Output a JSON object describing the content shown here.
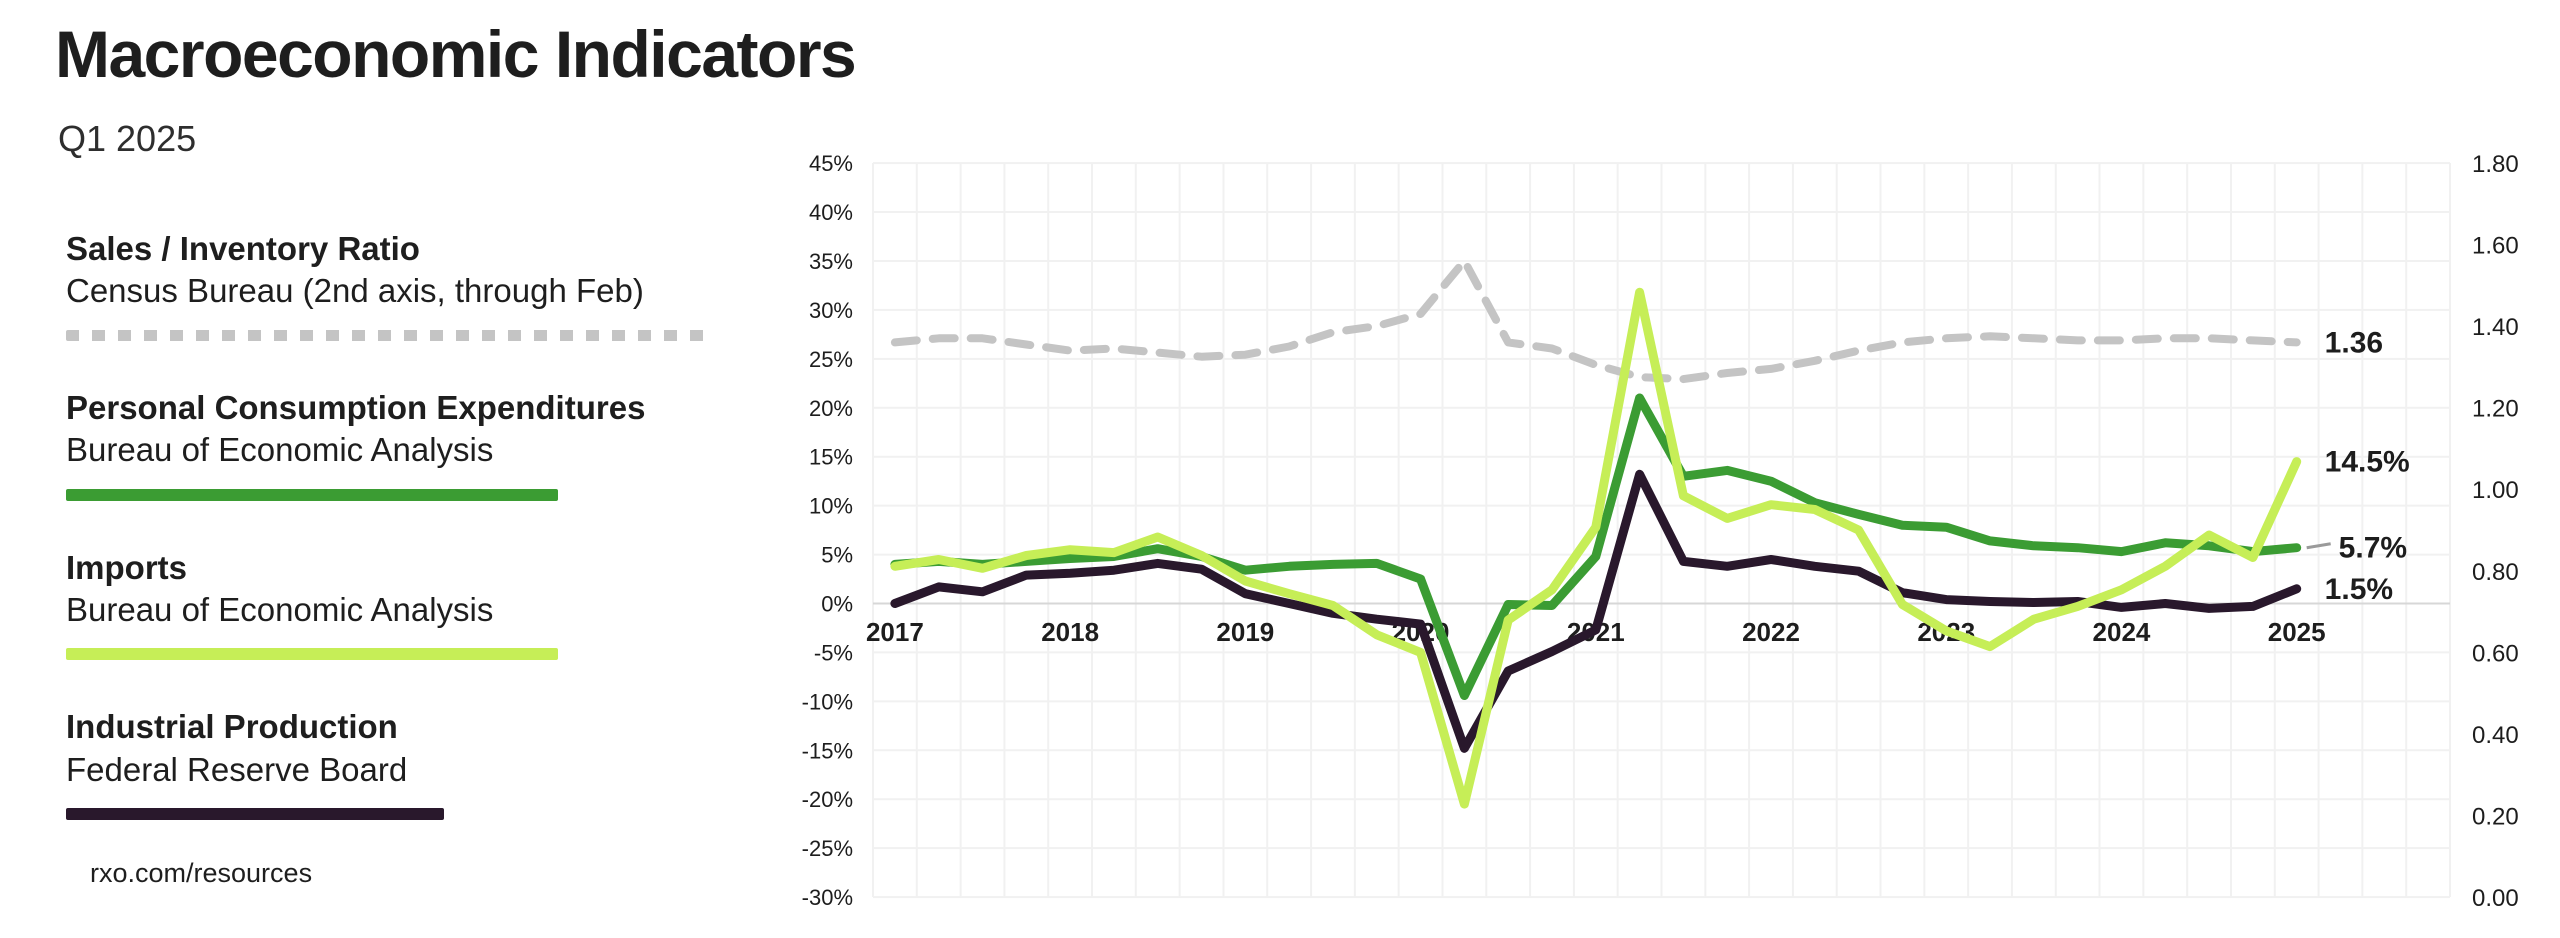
{
  "header": {
    "title": "Macroeconomic Indicators",
    "subtitle": "Q1 2025"
  },
  "legend": [
    {
      "name": "Sales / Inventory Ratio",
      "source": "Census Bureau (2nd axis, through Feb)",
      "color": "#c4c4c4",
      "style": "dashed"
    },
    {
      "name": "Personal Consumption Expenditures",
      "source": "Bureau of Economic Analysis",
      "color": "#3b9c33",
      "style": "solid"
    },
    {
      "name": "Imports",
      "source": "Bureau of Economic Analysis",
      "color": "#c6ee57",
      "style": "solid"
    },
    {
      "name": "Industrial Production",
      "source": "Federal Reserve Board",
      "color": "#29182c",
      "style": "solid"
    }
  ],
  "footer": {
    "link": "rxo.com/resources"
  },
  "chart_data": {
    "type": "line",
    "x_ticks": [
      "2017",
      "2018",
      "2019",
      "2020",
      "2021",
      "2022",
      "2023",
      "2024",
      "2025"
    ],
    "points_per_year": 4,
    "left_axis": {
      "min": -30,
      "max": 45,
      "step": 5,
      "unit": "%",
      "ticks": [
        "45%",
        "40%",
        "35%",
        "30%",
        "25%",
        "20%",
        "15%",
        "10%",
        "5%",
        "0%",
        "-5%",
        "-10%",
        "-15%",
        "-20%",
        "-25%",
        "-30%"
      ]
    },
    "right_axis": {
      "min": 0.0,
      "max": 1.8,
      "step": 0.2,
      "ticks": [
        "1.80",
        "1.60",
        "1.40",
        "1.20",
        "1.00",
        "0.80",
        "0.60",
        "0.40",
        "0.20",
        "0.00"
      ]
    },
    "grid": {
      "vertical": "quarterly",
      "horizontal": "every 5%"
    },
    "series": [
      {
        "name": "Sales / Inventory Ratio",
        "axis": "right",
        "color": "#c4c4c4",
        "dashed": true,
        "end_label": "1.36",
        "values": [
          1.36,
          1.37,
          1.37,
          1.355,
          1.34,
          1.345,
          1.335,
          1.325,
          1.33,
          1.35,
          1.385,
          1.4,
          1.43,
          1.56,
          1.36,
          1.345,
          1.305,
          1.275,
          1.27,
          1.285,
          1.295,
          1.315,
          1.34,
          1.36,
          1.37,
          1.375,
          1.37,
          1.365,
          1.365,
          1.37,
          1.37,
          1.365,
          1.36
        ]
      },
      {
        "name": "Industrial Production",
        "axis": "left",
        "color": "#29182c",
        "dashed": false,
        "end_label": "1.5%",
        "values": [
          0.0,
          1.7,
          1.2,
          2.9,
          3.1,
          3.4,
          4.1,
          3.5,
          1.0,
          0.0,
          -1.0,
          -1.6,
          -2.1,
          -14.8,
          -6.9,
          -4.9,
          -2.7,
          13.2,
          4.3,
          3.8,
          4.5,
          3.8,
          3.3,
          1.1,
          0.4,
          0.2,
          0.1,
          0.2,
          -0.4,
          0.0,
          -0.5,
          -0.3,
          1.5
        ]
      },
      {
        "name": "Personal Consumption Expenditures",
        "axis": "left",
        "color": "#3b9c33",
        "dashed": false,
        "end_label": "5.7%",
        "leader": true,
        "values": [
          4.0,
          4.3,
          4.0,
          4.3,
          4.6,
          4.8,
          5.6,
          4.8,
          3.4,
          3.8,
          4.0,
          4.1,
          2.5,
          -9.4,
          -0.1,
          -0.2,
          4.8,
          21.0,
          13.0,
          13.6,
          12.5,
          10.3,
          9.1,
          8.0,
          7.8,
          6.4,
          5.9,
          5.7,
          5.3,
          6.2,
          5.9,
          5.3,
          5.7
        ]
      },
      {
        "name": "Imports",
        "axis": "left",
        "color": "#c6ee57",
        "dashed": false,
        "end_label": "14.5%",
        "values": [
          3.8,
          4.5,
          3.6,
          4.9,
          5.5,
          5.2,
          6.8,
          4.9,
          2.3,
          1.0,
          -0.2,
          -3.2,
          -5.0,
          -20.5,
          -1.7,
          1.4,
          7.8,
          31.8,
          11.0,
          8.7,
          10.1,
          9.6,
          7.5,
          -0.1,
          -2.8,
          -4.4,
          -1.6,
          -0.3,
          1.4,
          3.8,
          7.0,
          4.7,
          14.5
        ]
      }
    ],
    "notes": "Quarterly values 2017Q1 - 2025Q1; Sales/Inventory Ratio plotted on 2nd (right) axis, through Feb 2025"
  }
}
